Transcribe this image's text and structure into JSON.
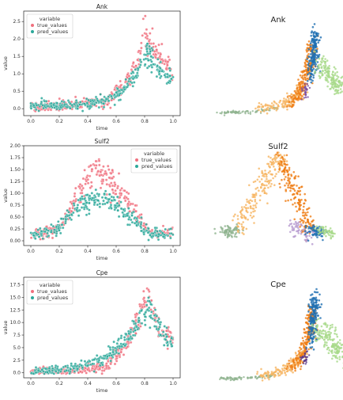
{
  "chart_data": [
    {
      "type": "scatter",
      "title": "Ank",
      "xlabel": "time",
      "ylabel": "value",
      "xlim": [
        -0.05,
        1.05
      ],
      "ylim": [
        -0.2,
        2.8
      ],
      "xticks": [
        "0.0",
        "0.2",
        "0.4",
        "0.6",
        "0.8",
        "1.0"
      ],
      "xtick_values": [
        0,
        0.2,
        0.4,
        0.6,
        0.8,
        1.0
      ],
      "yticks": [
        "0.0",
        "0.5",
        "1.0",
        "1.5",
        "2.0",
        "2.5"
      ],
      "ytick_values": [
        0,
        0.5,
        1.0,
        1.5,
        2.0,
        2.5
      ],
      "legend": {
        "title": "variable",
        "placement": "upper left",
        "entries": [
          "true_values",
          "pred_values"
        ]
      },
      "series": [
        {
          "name": "true_values",
          "color": "#f0707e",
          "x": [
            0,
            0.1,
            0.2,
            0.3,
            0.4,
            0.5,
            0.55,
            0.6,
            0.65,
            0.7,
            0.75,
            0.78,
            0.8,
            0.82,
            0.85,
            0.9,
            0.95,
            1.0
          ],
          "y": [
            0.05,
            0.05,
            0.08,
            0.1,
            0.15,
            0.2,
            0.3,
            0.45,
            0.7,
            0.95,
            1.3,
            1.8,
            2.35,
            2.0,
            1.75,
            1.5,
            1.3,
            1.1
          ]
        },
        {
          "name": "pred_values",
          "color": "#2ca89a",
          "x": [
            0,
            0.1,
            0.2,
            0.3,
            0.4,
            0.5,
            0.55,
            0.6,
            0.65,
            0.7,
            0.75,
            0.78,
            0.8,
            0.82,
            0.85,
            0.9,
            0.95,
            1.0
          ],
          "y": [
            0.08,
            0.1,
            0.08,
            0.12,
            0.15,
            0.2,
            0.28,
            0.38,
            0.55,
            0.75,
            1.05,
            1.3,
            1.5,
            1.55,
            1.4,
            1.1,
            0.95,
            0.9
          ]
        }
      ]
    },
    {
      "type": "scatter",
      "title": "Sulf2",
      "xlabel": "time",
      "ylabel": "value",
      "xlim": [
        -0.05,
        1.05
      ],
      "ylim": [
        -0.1,
        2.0
      ],
      "xticks": [
        "0.0",
        "0.2",
        "0.4",
        "0.6",
        "0.8",
        "1.0"
      ],
      "xtick_values": [
        0,
        0.2,
        0.4,
        0.6,
        0.8,
        1.0
      ],
      "yticks": [
        "0.00",
        "0.25",
        "0.50",
        "0.75",
        "1.00",
        "1.25",
        "1.50",
        "1.75",
        "2.00"
      ],
      "ytick_values": [
        0,
        0.25,
        0.5,
        0.75,
        1.0,
        1.25,
        1.5,
        1.75,
        2.0
      ],
      "legend": {
        "title": "variable",
        "placement": "upper right",
        "entries": [
          "true_values",
          "pred_values"
        ]
      },
      "series": [
        {
          "name": "true_values",
          "color": "#f0707e",
          "x": [
            0,
            0.05,
            0.1,
            0.15,
            0.2,
            0.25,
            0.3,
            0.35,
            0.4,
            0.45,
            0.5,
            0.55,
            0.6,
            0.65,
            0.7,
            0.75,
            0.8,
            0.85,
            0.9,
            0.95,
            1.0
          ],
          "y": [
            0.15,
            0.17,
            0.18,
            0.2,
            0.3,
            0.5,
            0.75,
            1.05,
            1.35,
            1.6,
            1.4,
            1.3,
            1.1,
            0.95,
            0.75,
            0.5,
            0.25,
            0.15,
            0.12,
            0.15,
            0.2
          ]
        },
        {
          "name": "pred_values",
          "color": "#2ca89a",
          "x": [
            0,
            0.05,
            0.1,
            0.15,
            0.2,
            0.25,
            0.3,
            0.35,
            0.4,
            0.45,
            0.5,
            0.55,
            0.6,
            0.65,
            0.7,
            0.75,
            0.8,
            0.85,
            0.9,
            0.95,
            1.0
          ],
          "y": [
            0.12,
            0.15,
            0.15,
            0.18,
            0.28,
            0.45,
            0.6,
            0.72,
            0.8,
            0.88,
            0.95,
            0.85,
            0.75,
            0.62,
            0.5,
            0.35,
            0.2,
            0.15,
            0.12,
            0.15,
            0.18
          ]
        }
      ]
    },
    {
      "type": "scatter",
      "title": "Cpe",
      "xlabel": "time",
      "ylabel": "value",
      "xlim": [
        -0.05,
        1.05
      ],
      "ylim": [
        -1.0,
        19.0
      ],
      "xticks": [
        "0.0",
        "0.2",
        "0.4",
        "0.6",
        "0.8",
        "1.0"
      ],
      "xtick_values": [
        0,
        0.2,
        0.4,
        0.6,
        0.8,
        1.0
      ],
      "yticks": [
        "0.0",
        "2.5",
        "5.0",
        "7.5",
        "10.0",
        "12.5",
        "15.0",
        "17.5"
      ],
      "ytick_values": [
        0,
        2.5,
        5.0,
        7.5,
        10.0,
        12.5,
        15.0,
        17.5
      ],
      "legend": {
        "title": "variable",
        "placement": "upper left",
        "entries": [
          "true_values",
          "pred_values"
        ]
      },
      "series": [
        {
          "name": "true_values",
          "color": "#f0707e",
          "x": [
            0,
            0.1,
            0.2,
            0.3,
            0.4,
            0.5,
            0.55,
            0.6,
            0.65,
            0.7,
            0.75,
            0.8,
            0.83,
            0.86,
            0.9,
            0.95,
            1.0
          ],
          "y": [
            0.1,
            0.2,
            0.3,
            0.5,
            0.8,
            1.2,
            2.0,
            3.5,
            5.0,
            7.0,
            10.0,
            14.0,
            15.0,
            12.5,
            9.0,
            7.5,
            6.5
          ]
        },
        {
          "name": "pred_values",
          "color": "#2ca89a",
          "x": [
            0,
            0.1,
            0.2,
            0.3,
            0.4,
            0.5,
            0.55,
            0.6,
            0.65,
            0.7,
            0.75,
            0.8,
            0.83,
            0.86,
            0.9,
            0.95,
            1.0
          ],
          "y": [
            0.2,
            0.4,
            0.6,
            1.0,
            1.6,
            2.5,
            3.5,
            4.8,
            6.0,
            7.5,
            9.5,
            11.5,
            12.5,
            11.5,
            9.0,
            7.0,
            6.0
          ]
        }
      ]
    },
    {
      "type": "scatter",
      "title": "Ank",
      "axes": "off",
      "colors": {
        "grey_green": "#8fb38f",
        "light_orange": "#f6b563",
        "dark_orange": "#ef7d14",
        "light_green": "#a8d98a",
        "blue": "#1f6fb2",
        "purple": "#7a4fa3"
      }
    },
    {
      "type": "scatter",
      "title": "Sulf2",
      "axes": "off",
      "colors": {
        "grey_green": "#8fb38f",
        "light_orange": "#f6b563",
        "dark_orange": "#ef7d14",
        "light_green": "#a8d98a",
        "blue": "#1f6fb2",
        "purple": "#b79bd0"
      }
    },
    {
      "type": "scatter",
      "title": "Cpe",
      "axes": "off",
      "colors": {
        "grey_green": "#8fb38f",
        "light_orange": "#f6b563",
        "dark_orange": "#ef7d14",
        "light_green": "#a8d98a",
        "blue": "#1f6fb2",
        "purple": "#5b3b8c"
      }
    }
  ]
}
